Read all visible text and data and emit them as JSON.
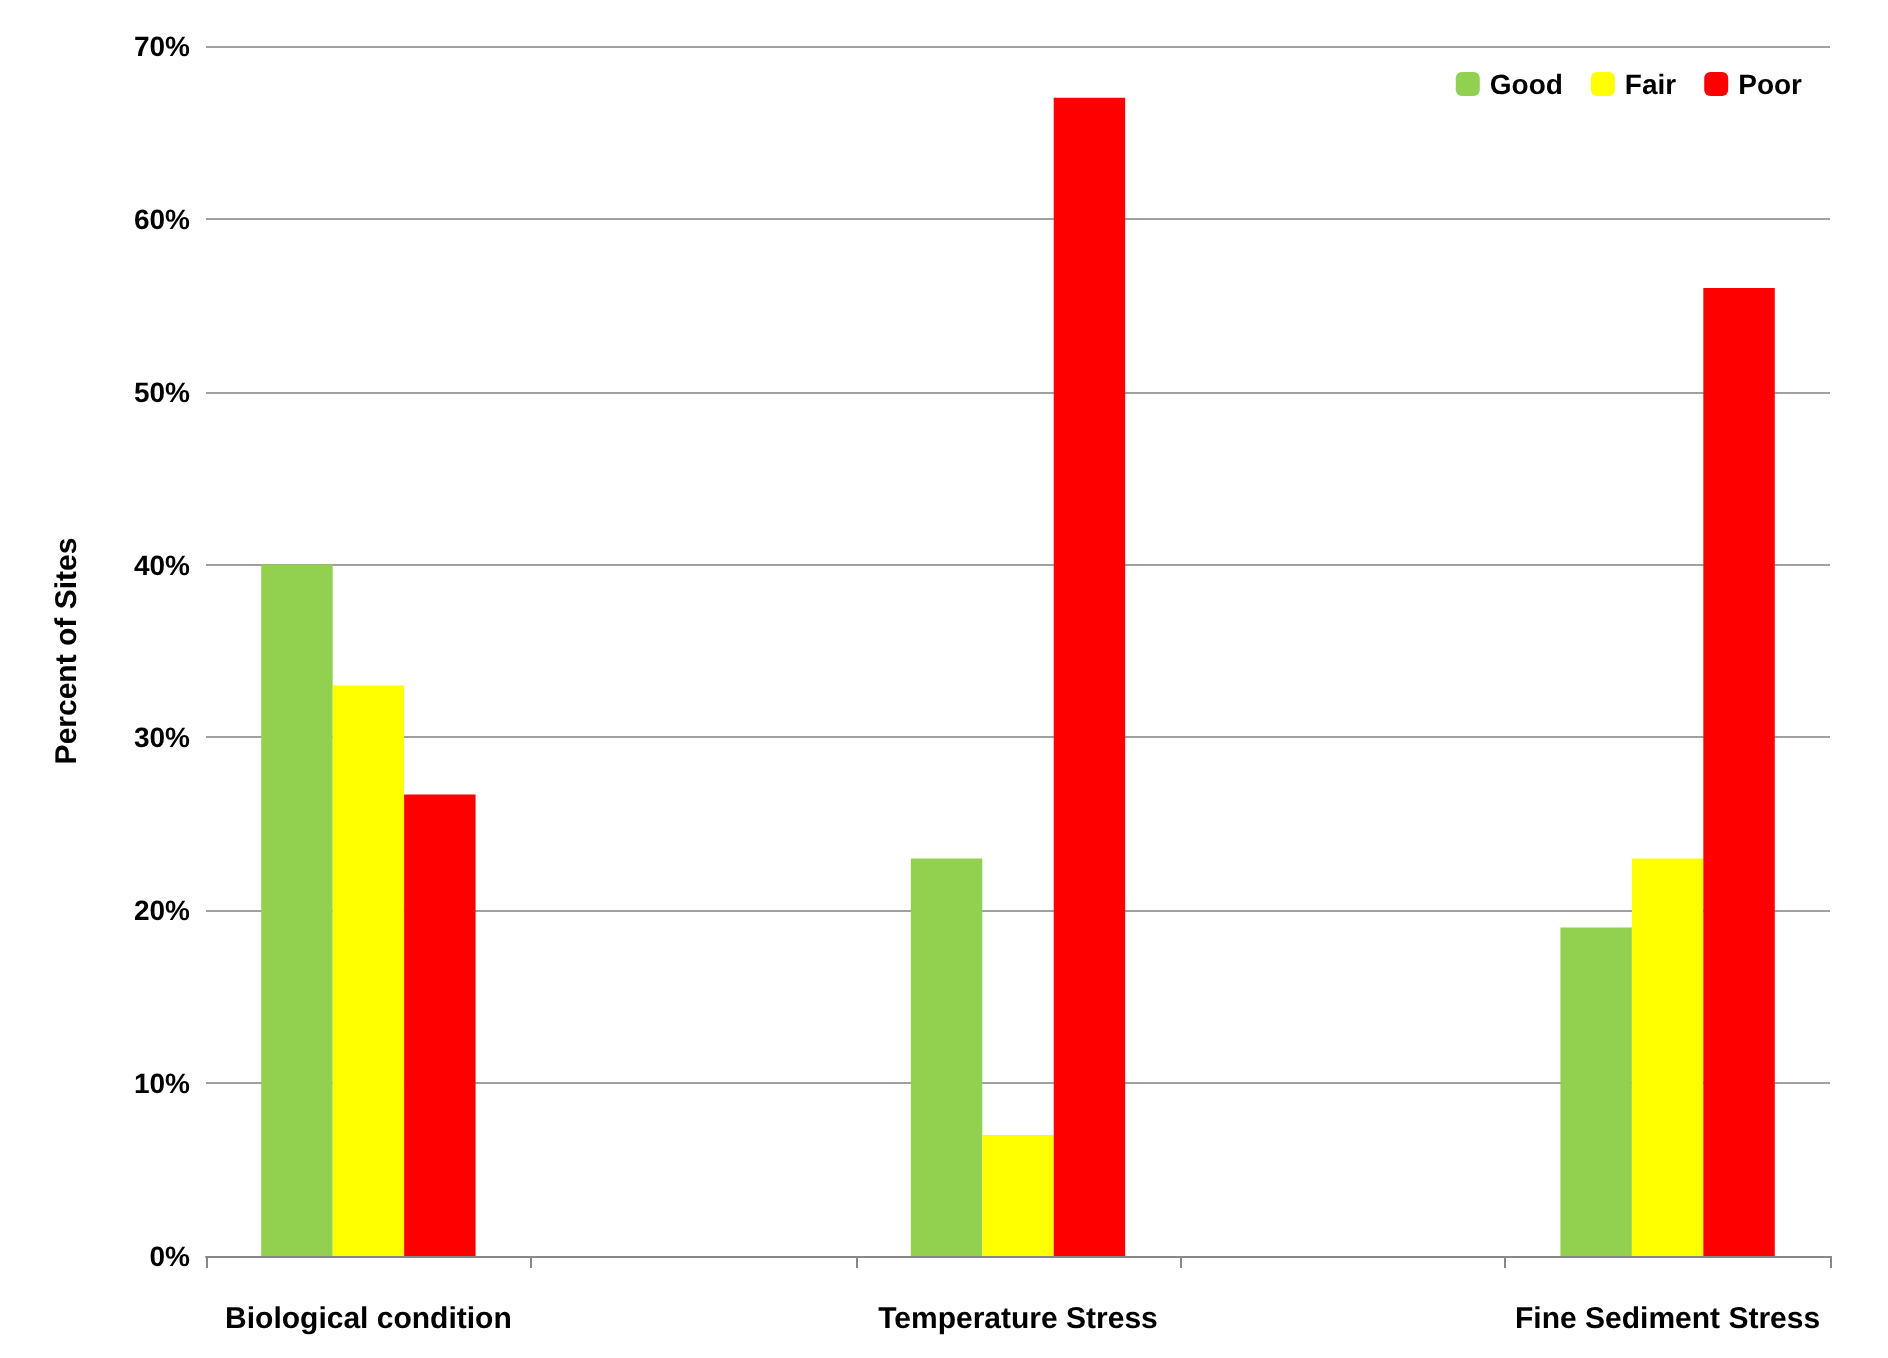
{
  "chart_data": {
    "type": "bar",
    "ylabel": "Percent of Sites",
    "categories": [
      "Biological condition",
      null,
      "Temperature Stress",
      null,
      "Fine Sediment Stress"
    ],
    "series": [
      {
        "name": "Good",
        "color": "#92d050",
        "values": [
          40,
          null,
          23,
          null,
          19
        ]
      },
      {
        "name": "Fair",
        "color": "#ffff00",
        "values": [
          33,
          null,
          7,
          null,
          23
        ]
      },
      {
        "name": "Poor",
        "color": "#ff0000",
        "values": [
          26.7,
          null,
          67,
          null,
          56
        ]
      }
    ],
    "ylim": [
      0,
      70
    ],
    "yticks": [
      {
        "value": 0,
        "label": "0%"
      },
      {
        "value": 10,
        "label": "10%"
      },
      {
        "value": 20,
        "label": "20%"
      },
      {
        "value": 30,
        "label": "30%"
      },
      {
        "value": 40,
        "label": "40%"
      },
      {
        "value": 50,
        "label": "50%"
      },
      {
        "value": 60,
        "label": "60%"
      },
      {
        "value": 70,
        "label": "70%"
      }
    ],
    "grid": "y",
    "legend": "top right"
  }
}
